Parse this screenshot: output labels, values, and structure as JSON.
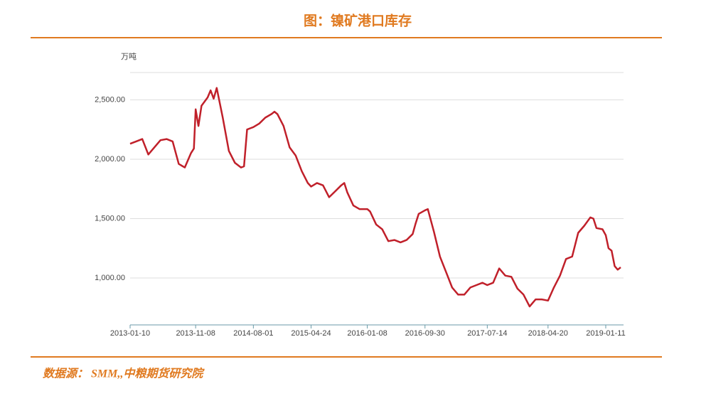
{
  "chart_data": {
    "type": "line",
    "title": "图：镍矿港口库存",
    "y_label": "万吨",
    "source": "数据源： SMM,,中粮期货研究院",
    "x": [
      "2013-01-10",
      "2013-02-07",
      "2013-03-07",
      "2013-04-04",
      "2013-05-02",
      "2013-05-30",
      "2013-06-27",
      "2013-07-25",
      "2013-08-22",
      "2013-09-19",
      "2013-10-17",
      "2013-10-31",
      "2013-11-08",
      "2013-11-21",
      "2013-12-05",
      "2014-01-02",
      "2014-01-16",
      "2014-01-30",
      "2014-02-13",
      "2014-03-13",
      "2014-04-10",
      "2014-05-08",
      "2014-06-05",
      "2014-06-19",
      "2014-07-03",
      "2014-07-17",
      "2014-08-01",
      "2014-08-28",
      "2014-09-25",
      "2014-10-23",
      "2014-11-06",
      "2014-11-20",
      "2014-12-18",
      "2015-01-15",
      "2015-02-12",
      "2015-03-12",
      "2015-04-09",
      "2015-04-24",
      "2015-05-21",
      "2015-06-18",
      "2015-07-16",
      "2015-08-13",
      "2015-09-10",
      "2015-09-24",
      "2015-10-08",
      "2015-11-05",
      "2015-12-03",
      "2016-01-08",
      "2016-01-21",
      "2016-02-18",
      "2016-03-17",
      "2016-04-14",
      "2016-05-12",
      "2016-06-09",
      "2016-07-07",
      "2016-08-04",
      "2016-08-18",
      "2016-09-01",
      "2016-09-30",
      "2016-10-13",
      "2016-11-10",
      "2016-12-08",
      "2017-01-05",
      "2017-02-02",
      "2017-03-02",
      "2017-03-30",
      "2017-04-27",
      "2017-05-25",
      "2017-06-22",
      "2017-07-14",
      "2017-08-10",
      "2017-09-07",
      "2017-10-05",
      "2017-11-02",
      "2017-11-30",
      "2017-12-28",
      "2018-01-25",
      "2018-02-22",
      "2018-03-22",
      "2018-04-20",
      "2018-05-17",
      "2018-06-14",
      "2018-07-12",
      "2018-08-09",
      "2018-09-06",
      "2018-10-04",
      "2018-11-01",
      "2018-11-15",
      "2018-11-29",
      "2018-12-27",
      "2019-01-11",
      "2019-01-24",
      "2019-02-07",
      "2019-02-21",
      "2019-03-07",
      "2019-03-21"
    ],
    "series": [
      {
        "name": "镍矿港口库存",
        "color": "#c0202a",
        "values": [
          2130,
          2150,
          2170,
          2040,
          2100,
          2160,
          2170,
          2150,
          1960,
          1930,
          2050,
          2090,
          2420,
          2280,
          2450,
          2520,
          2580,
          2510,
          2600,
          2350,
          2070,
          1970,
          1930,
          1940,
          2250,
          2260,
          2270,
          2300,
          2350,
          2380,
          2400,
          2380,
          2280,
          2100,
          2030,
          1900,
          1800,
          1770,
          1800,
          1780,
          1680,
          1730,
          1780,
          1800,
          1720,
          1610,
          1580,
          1580,
          1560,
          1450,
          1410,
          1310,
          1320,
          1300,
          1320,
          1370,
          1460,
          1540,
          1570,
          1580,
          1390,
          1180,
          1050,
          920,
          860,
          860,
          920,
          940,
          960,
          940,
          960,
          1080,
          1020,
          1010,
          910,
          860,
          760,
          820,
          820,
          810,
          920,
          1020,
          1160,
          1180,
          1380,
          1440,
          1510,
          1500,
          1420,
          1410,
          1360,
          1250,
          1230,
          1100,
          1070,
          1090
        ]
      }
    ],
    "xlim": [
      "2013-01-10",
      "2019-04-03"
    ],
    "xticks": [
      "2013-01-10",
      "2013-11-08",
      "2014-08-01",
      "2015-04-24",
      "2016-01-08",
      "2016-09-30",
      "2017-07-14",
      "2018-04-20",
      "2019-01-11"
    ],
    "ylim": [
      605,
      2730
    ],
    "yticks": [
      {
        "value": 1000,
        "label": "1,000.00"
      },
      {
        "value": 1500,
        "label": "1,500.00"
      },
      {
        "value": 2000,
        "label": "2,000.00"
      },
      {
        "value": 2500,
        "label": "2,500.00"
      }
    ],
    "grid": true
  }
}
